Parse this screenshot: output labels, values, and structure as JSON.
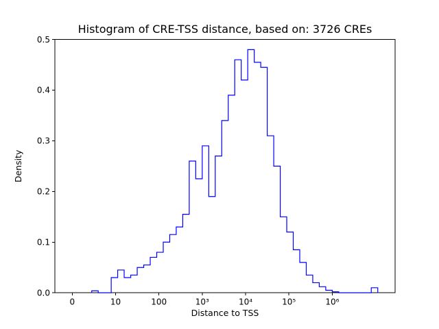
{
  "chart_data": {
    "type": "bar",
    "subtype": "step-histogram",
    "title": "Histogram of CRE-TSS distance, based on: 3726 CREs",
    "xlabel": "Distance to TSS",
    "ylabel": "Density",
    "x_scale": "symlog",
    "x_linear_threshold": 10,
    "ylim": [
      0,
      0.5
    ],
    "line_color": "#0000ff",
    "axis_color": "#000000",
    "background_color": "#ffffff",
    "x_ticks": [
      {
        "value": 0,
        "label": "0"
      },
      {
        "value": 10,
        "label": "10"
      },
      {
        "value": 100,
        "label": "100"
      },
      {
        "value": 1000,
        "label": "10³"
      },
      {
        "value": 10000,
        "label": "10⁴"
      },
      {
        "value": 100000,
        "label": "10⁵"
      },
      {
        "value": 1000000,
        "label": "10⁶"
      }
    ],
    "y_ticks": [
      {
        "value": 0.0,
        "label": "0.0"
      },
      {
        "value": 0.1,
        "label": "0.1"
      },
      {
        "value": 0.2,
        "label": "0.2"
      },
      {
        "value": 0.3,
        "label": "0.3"
      },
      {
        "value": 0.4,
        "label": "0.4"
      },
      {
        "value": 0.5,
        "label": "0.5"
      }
    ],
    "bin_edges": [
      4.5,
      6,
      7.5,
      9,
      11.2,
      15.8,
      22.4,
      31.6,
      44.7,
      63.1,
      89.1,
      126,
      178,
      251,
      355,
      501,
      708,
      1000,
      1413,
      1995,
      2818,
      3981,
      5623,
      7943,
      11220,
      15849,
      22387,
      31623,
      44668,
      63096,
      89125,
      125893,
      177828,
      251189,
      354813,
      501187,
      707946,
      1000000,
      1412538,
      1995262,
      2818383,
      3981072,
      5623413,
      7943282,
      11220185
    ],
    "densities": [
      0.004,
      0,
      0,
      0.03,
      0.045,
      0.03,
      0.035,
      0.05,
      0.055,
      0.07,
      0.08,
      0.1,
      0.115,
      0.13,
      0.155,
      0.26,
      0.225,
      0.29,
      0.19,
      0.27,
      0.34,
      0.39,
      0.46,
      0.42,
      0.48,
      0.455,
      0.445,
      0.31,
      0.25,
      0.15,
      0.12,
      0.085,
      0.06,
      0.035,
      0.02,
      0.012,
      0.005,
      0.002,
      0,
      0,
      0,
      0,
      0,
      0.01
    ]
  }
}
